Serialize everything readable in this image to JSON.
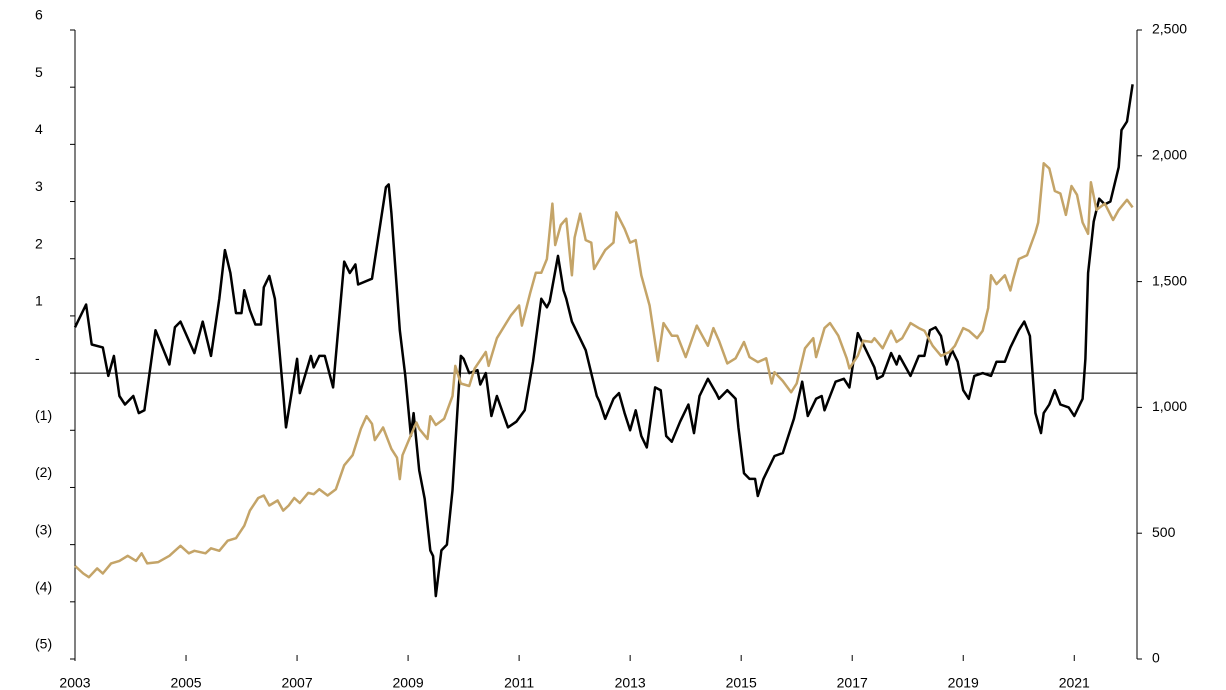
{
  "chart_data": {
    "type": "line",
    "xlim": [
      2003,
      2022.13
    ],
    "xticks": [
      2003,
      2005,
      2007,
      2009,
      2011,
      2013,
      2015,
      2017,
      2019,
      2021
    ],
    "ylim": [
      -5,
      6
    ],
    "yticks": [
      6,
      5,
      4,
      3,
      2,
      1,
      {
        "value": 0,
        "label": "-"
      },
      {
        "value": -1,
        "label": "(1)"
      },
      {
        "value": -2,
        "label": "(2)"
      },
      {
        "value": -3,
        "label": "(3)"
      },
      {
        "value": -4,
        "label": "(4)"
      },
      {
        "value": -5,
        "label": "(5)"
      }
    ],
    "y2lim": [
      0,
      2500
    ],
    "y2ticks": [
      {
        "value": 2500,
        "label": "2,500"
      },
      {
        "value": 2000,
        "label": "2,000"
      },
      {
        "value": 1500,
        "label": "1,500"
      },
      {
        "value": 1000,
        "label": "1,000"
      },
      500,
      0
    ],
    "series": [
      {
        "color": "#000000",
        "axis": "y",
        "x": [
          2003.0,
          2003.2,
          2003.3,
          2003.5,
          2003.6,
          2003.7,
          2003.8,
          2003.9,
          2004.05,
          2004.15,
          2004.25,
          2004.45,
          2004.7,
          2004.8,
          2004.9,
          2005.15,
          2005.3,
          2005.45,
          2005.6,
          2005.7,
          2005.8,
          2005.9,
          2006.0,
          2006.05,
          2006.15,
          2006.25,
          2006.35,
          2006.4,
          2006.5,
          2006.6,
          2006.75,
          2006.8,
          2007.0,
          2007.05,
          2007.25,
          2007.3,
          2007.4,
          2007.5,
          2007.65,
          2007.85,
          2007.95,
          2008.05,
          2008.1,
          2008.35,
          2008.6,
          2008.65,
          2008.7,
          2008.85,
          2008.95,
          2009.05,
          2009.1,
          2009.2,
          2009.3,
          2009.4,
          2009.45,
          2009.5,
          2009.6,
          2009.7,
          2009.8,
          2009.95,
          2010.0,
          2010.1,
          2010.25,
          2010.3,
          2010.4,
          2010.5,
          2010.6,
          2010.8,
          2010.95,
          2011.1,
          2011.25,
          2011.4,
          2011.5,
          2011.55,
          2011.7,
          2011.8,
          2011.85,
          2011.95,
          2012.2,
          2012.4,
          2012.45,
          2012.55,
          2012.7,
          2012.8,
          2012.9,
          2013.0,
          2013.1,
          2013.2,
          2013.3,
          2013.45,
          2013.55,
          2013.65,
          2013.75,
          2013.9,
          2014.05,
          2014.15,
          2014.25,
          2014.4,
          2014.55,
          2014.6,
          2014.75,
          2014.9,
          2014.95,
          2015.05,
          2015.15,
          2015.25,
          2015.3,
          2015.4,
          2015.6,
          2015.75,
          2015.95,
          2016.1,
          2016.2,
          2016.35,
          2016.45,
          2016.5,
          2016.7,
          2016.85,
          2016.95,
          2017.1,
          2017.25,
          2017.4,
          2017.45,
          2017.55,
          2017.7,
          2017.8,
          2017.85,
          2018.05,
          2018.2,
          2018.3,
          2018.4,
          2018.5,
          2018.6,
          2018.7,
          2018.8,
          2018.9,
          2019.0,
          2019.1,
          2019.2,
          2019.35,
          2019.5,
          2019.6,
          2019.75,
          2019.85,
          2020.0,
          2020.1,
          2020.2,
          2020.3,
          2020.4,
          2020.45,
          2020.55,
          2020.65,
          2020.75,
          2020.9,
          2021.0,
          2021.15,
          2021.2,
          2021.25,
          2021.35,
          2021.45,
          2021.55,
          2021.65,
          2021.8,
          2021.85,
          2021.95,
          2022.05
        ],
        "values": [
          0.8,
          1.2,
          0.5,
          0.45,
          -0.05,
          0.3,
          -0.4,
          -0.55,
          -0.4,
          -0.7,
          -0.65,
          0.75,
          0.15,
          0.8,
          0.9,
          0.35,
          0.9,
          0.3,
          1.3,
          2.15,
          1.75,
          1.05,
          1.05,
          1.45,
          1.1,
          0.85,
          0.85,
          1.5,
          1.7,
          1.3,
          -0.35,
          -0.95,
          0.25,
          -0.35,
          0.3,
          0.1,
          0.3,
          0.3,
          -0.25,
          1.95,
          1.75,
          1.9,
          1.55,
          1.65,
          3.25,
          3.3,
          2.8,
          0.75,
          -0.05,
          -1.1,
          -0.7,
          -1.7,
          -2.2,
          -3.1,
          -3.2,
          -3.9,
          -3.1,
          -3.0,
          -2.05,
          0.3,
          0.25,
          0.0,
          0.05,
          -0.2,
          0.0,
          -0.75,
          -0.4,
          -0.95,
          -0.85,
          -0.65,
          0.2,
          1.3,
          1.15,
          1.25,
          2.05,
          1.45,
          1.3,
          0.9,
          0.4,
          -0.4,
          -0.5,
          -0.8,
          -0.45,
          -0.35,
          -0.7,
          -1.0,
          -0.65,
          -1.1,
          -1.3,
          -0.25,
          -0.3,
          -1.1,
          -1.2,
          -0.85,
          -0.55,
          -1.05,
          -0.4,
          -0.1,
          -0.35,
          -0.45,
          -0.3,
          -0.45,
          -0.95,
          -1.75,
          -1.85,
          -1.85,
          -2.15,
          -1.85,
          -1.45,
          -1.4,
          -0.8,
          -0.15,
          -0.75,
          -0.45,
          -0.4,
          -0.65,
          -0.15,
          -0.1,
          -0.25,
          0.7,
          0.4,
          0.1,
          -0.1,
          -0.05,
          0.35,
          0.15,
          0.3,
          -0.05,
          0.3,
          0.3,
          0.75,
          0.8,
          0.65,
          0.15,
          0.4,
          0.2,
          -0.3,
          -0.45,
          -0.05,
          0.0,
          -0.05,
          0.2,
          0.2,
          0.45,
          0.75,
          0.9,
          0.65,
          -0.7,
          -1.05,
          -0.7,
          -0.55,
          -0.3,
          -0.55,
          -0.6,
          -0.75,
          -0.45,
          0.25,
          1.75,
          2.65,
          3.05,
          2.95,
          3.0,
          3.6,
          4.25,
          4.4,
          5.05
        ]
      },
      {
        "color": "#c4a468",
        "axis": "y2",
        "x": [
          2003.0,
          2003.15,
          2003.25,
          2003.4,
          2003.5,
          2003.65,
          2003.8,
          2003.95,
          2004.1,
          2004.2,
          2004.3,
          2004.5,
          2004.7,
          2004.8,
          2004.9,
          2005.05,
          2005.15,
          2005.35,
          2005.45,
          2005.6,
          2005.75,
          2005.9,
          2006.05,
          2006.15,
          2006.3,
          2006.4,
          2006.5,
          2006.65,
          2006.75,
          2006.85,
          2006.95,
          2007.05,
          2007.2,
          2007.3,
          2007.4,
          2007.55,
          2007.7,
          2007.85,
          2008.0,
          2008.15,
          2008.25,
          2008.35,
          2008.4,
          2008.55,
          2008.7,
          2008.8,
          2008.85,
          2008.9,
          2009.05,
          2009.15,
          2009.2,
          2009.35,
          2009.4,
          2009.5,
          2009.65,
          2009.8,
          2009.85,
          2009.95,
          2010.1,
          2010.2,
          2010.4,
          2010.45,
          2010.6,
          2010.85,
          2011.0,
          2011.05,
          2011.2,
          2011.3,
          2011.4,
          2011.5,
          2011.6,
          2011.65,
          2011.75,
          2011.85,
          2011.95,
          2012.0,
          2012.1,
          2012.2,
          2012.3,
          2012.35,
          2012.55,
          2012.7,
          2012.75,
          2012.9,
          2013.0,
          2013.1,
          2013.2,
          2013.35,
          2013.5,
          2013.6,
          2013.75,
          2013.85,
          2014.0,
          2014.2,
          2014.3,
          2014.4,
          2014.5,
          2014.6,
          2014.75,
          2014.9,
          2015.05,
          2015.15,
          2015.3,
          2015.45,
          2015.55,
          2015.6,
          2015.75,
          2015.9,
          2016.0,
          2016.15,
          2016.3,
          2016.35,
          2016.5,
          2016.6,
          2016.75,
          2016.9,
          2016.95,
          2017.1,
          2017.2,
          2017.35,
          2017.4,
          2017.55,
          2017.7,
          2017.8,
          2017.9,
          2018.05,
          2018.2,
          2018.3,
          2018.45,
          2018.6,
          2018.75,
          2018.85,
          2019.0,
          2019.1,
          2019.25,
          2019.35,
          2019.45,
          2019.5,
          2019.6,
          2019.75,
          2019.85,
          2019.9,
          2020.0,
          2020.15,
          2020.3,
          2020.35,
          2020.45,
          2020.55,
          2020.65,
          2020.75,
          2020.85,
          2020.95,
          2021.05,
          2021.15,
          2021.25,
          2021.3,
          2021.4,
          2021.55,
          2021.7,
          2021.8,
          2021.95,
          2022.05
        ],
        "values": [
          370,
          340,
          325,
          360,
          340,
          380,
          390,
          410,
          390,
          420,
          380,
          385,
          410,
          430,
          450,
          420,
          430,
          420,
          440,
          430,
          470,
          480,
          530,
          590,
          640,
          650,
          610,
          630,
          590,
          610,
          640,
          620,
          660,
          655,
          675,
          650,
          675,
          770,
          810,
          915,
          965,
          935,
          870,
          920,
          835,
          800,
          715,
          810,
          890,
          940,
          915,
          875,
          965,
          930,
          955,
          1045,
          1165,
          1095,
          1085,
          1155,
          1220,
          1165,
          1275,
          1365,
          1405,
          1325,
          1455,
          1535,
          1535,
          1590,
          1810,
          1645,
          1725,
          1750,
          1525,
          1675,
          1770,
          1665,
          1655,
          1550,
          1625,
          1655,
          1775,
          1710,
          1655,
          1665,
          1525,
          1405,
          1185,
          1335,
          1285,
          1285,
          1200,
          1325,
          1285,
          1245,
          1315,
          1265,
          1175,
          1195,
          1260,
          1200,
          1180,
          1195,
          1095,
          1140,
          1105,
          1060,
          1095,
          1235,
          1275,
          1200,
          1315,
          1335,
          1285,
          1195,
          1155,
          1205,
          1265,
          1260,
          1275,
          1235,
          1305,
          1260,
          1275,
          1335,
          1315,
          1305,
          1245,
          1205,
          1220,
          1245,
          1315,
          1305,
          1275,
          1305,
          1395,
          1525,
          1490,
          1525,
          1465,
          1510,
          1590,
          1605,
          1695,
          1735,
          1970,
          1950,
          1860,
          1850,
          1765,
          1880,
          1845,
          1735,
          1690,
          1895,
          1785,
          1810,
          1745,
          1785,
          1825,
          1795
        ]
      }
    ]
  }
}
